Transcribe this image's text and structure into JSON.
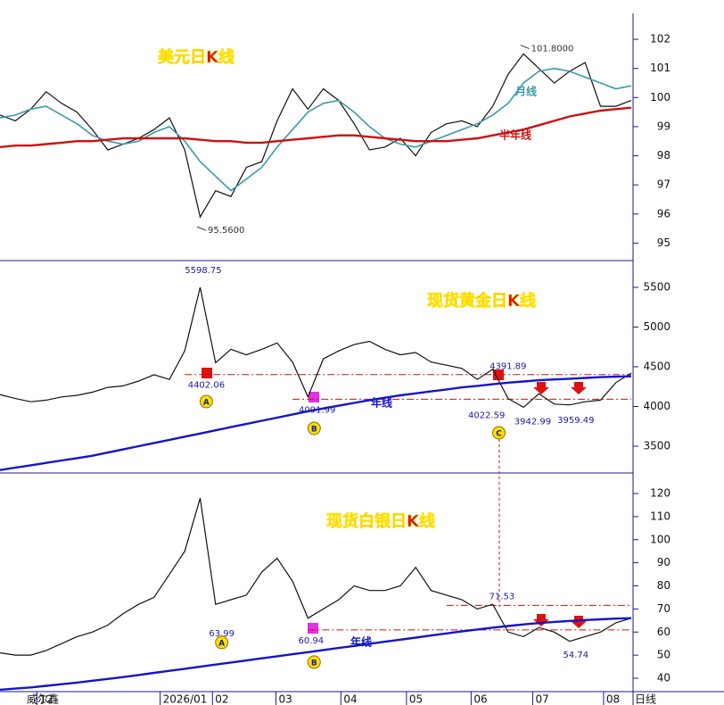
{
  "chart_data": [
    {
      "type": "line",
      "title": "美元日K线",
      "xlim": [
        0,
        205
      ],
      "ylim": [
        94.4,
        103.35
      ],
      "yticks": [
        95,
        96,
        97,
        98,
        99,
        100,
        101,
        102
      ],
      "x": [
        0,
        5,
        10,
        15,
        20,
        25,
        30,
        35,
        40,
        45,
        50,
        55,
        60,
        65,
        70,
        75,
        80,
        85,
        90,
        95,
        100,
        105,
        110,
        115,
        120,
        125,
        130,
        135,
        140,
        145,
        150,
        155,
        160,
        165,
        170,
        175,
        180,
        185,
        190,
        195,
        200,
        205
      ],
      "series": [
        {
          "color": "#111111",
          "values": [
            99.4,
            99.2,
            99.6,
            100.2,
            99.8,
            99.5,
            98.9,
            98.2,
            98.4,
            98.6,
            98.9,
            99.3,
            98.2,
            95.9,
            96.8,
            96.6,
            97.6,
            97.8,
            99.2,
            100.3,
            99.6,
            100.3,
            99.9,
            99.1,
            98.2,
            98.3,
            98.6,
            98.0,
            98.8,
            99.1,
            99.2,
            99.0,
            99.7,
            100.8,
            101.5,
            101.0,
            100.5,
            100.9,
            101.2,
            99.7,
            99.7,
            99.9
          ]
        },
        {
          "name": "月线",
          "color": "#3a9aaa",
          "values": [
            99.3,
            99.4,
            99.6,
            99.7,
            99.4,
            99.1,
            98.7,
            98.5,
            98.4,
            98.5,
            98.8,
            99.0,
            98.5,
            97.8,
            97.3,
            96.8,
            97.2,
            97.6,
            98.3,
            98.9,
            99.5,
            99.8,
            99.9,
            99.5,
            99.0,
            98.6,
            98.4,
            98.3,
            98.5,
            98.7,
            98.9,
            99.1,
            99.4,
            99.8,
            100.5,
            100.9,
            101.0,
            100.9,
            100.7,
            100.5,
            100.3,
            100.4
          ]
        },
        {
          "name": "半年线",
          "color": "#cc1111",
          "values": [
            98.3,
            98.35,
            98.35,
            98.4,
            98.45,
            98.5,
            98.5,
            98.55,
            98.6,
            98.6,
            98.6,
            98.6,
            98.6,
            98.55,
            98.5,
            98.5,
            98.45,
            98.45,
            98.5,
            98.55,
            98.6,
            98.65,
            98.7,
            98.7,
            98.65,
            98.6,
            98.55,
            98.5,
            98.5,
            98.5,
            98.55,
            98.6,
            98.7,
            98.8,
            98.9,
            99.05,
            99.2,
            99.35,
            99.45,
            99.55,
            99.6,
            99.65
          ]
        }
      ],
      "annotations": [
        {
          "text": "101.8000",
          "x": 169,
          "y": 101.8,
          "pos": "right"
        },
        {
          "text": "95.5600",
          "x": 64,
          "y": 95.56,
          "pos": "right"
        }
      ]
    },
    {
      "type": "line",
      "title": "现货黄金日K线",
      "xlim": [
        0,
        205
      ],
      "ylim": [
        3163,
        5837
      ],
      "yticks": [
        3500,
        4000,
        4500,
        5000,
        5500
      ],
      "x": [
        0,
        5,
        10,
        15,
        20,
        25,
        30,
        35,
        40,
        45,
        50,
        55,
        60,
        65,
        70,
        75,
        80,
        85,
        90,
        95,
        100,
        105,
        110,
        115,
        120,
        125,
        130,
        135,
        140,
        145,
        150,
        155,
        160,
        165,
        170,
        175,
        180,
        185,
        190,
        195,
        200,
        205
      ],
      "series": [
        {
          "color": "#111111",
          "values": [
            4150,
            4100,
            4060,
            4080,
            4120,
            4140,
            4180,
            4240,
            4260,
            4320,
            4400,
            4340,
            4700,
            5500,
            4550,
            4720,
            4650,
            4720,
            4800,
            4560,
            4120,
            4600,
            4700,
            4780,
            4820,
            4720,
            4650,
            4680,
            4560,
            4520,
            4480,
            4340,
            4470,
            4100,
            3990,
            4160,
            4030,
            4020,
            4060,
            4080,
            4300,
            4420
          ]
        },
        {
          "name": "年线",
          "color": "#1515c8",
          "values": [
            3200,
            3230,
            3260,
            3290,
            3320,
            3350,
            3380,
            3420,
            3460,
            3500,
            3540,
            3580,
            3620,
            3660,
            3700,
            3740,
            3780,
            3820,
            3860,
            3900,
            3940,
            3975,
            4010,
            4045,
            4080,
            4110,
            4140,
            4165,
            4190,
            4215,
            4240,
            4260,
            4280,
            4300,
            4315,
            4330,
            4340,
            4350,
            4360,
            4370,
            4375,
            4380
          ]
        }
      ],
      "reference_lines": [
        {
          "y": 4402.06,
          "x0": 60,
          "x1": 205
        },
        {
          "y": 4091.99,
          "x0": 95,
          "x1": 205
        }
      ],
      "annotations": [
        {
          "text": "5598.75",
          "x": 66,
          "y": 5598.75,
          "pos": "above"
        },
        {
          "text": "4402.06",
          "x": 67,
          "y": 4402.06,
          "pos": "below"
        },
        {
          "text": "4091.99",
          "x": 103,
          "y": 4091.99,
          "pos": "below"
        },
        {
          "text": "4391.89",
          "x": 165,
          "y": 4391.89,
          "pos": "above"
        },
        {
          "text": "4022.59",
          "x": 158,
          "y": 4022.59,
          "pos": "below"
        },
        {
          "text": "3942.99",
          "x": 173,
          "y": 3942.99,
          "pos": "below"
        },
        {
          "text": "3959.49",
          "x": 187,
          "y": 3959.49,
          "pos": "below"
        }
      ],
      "markers": [
        {
          "text": "A",
          "x": 67,
          "y": 4062
        },
        {
          "text": "B",
          "x": 102,
          "y": 3725
        },
        {
          "text": "C",
          "x": 162,
          "y": 3669
        }
      ]
    },
    {
      "type": "line",
      "title": "现货白银日K线",
      "xlim": [
        0,
        205
      ],
      "ylim": [
        34.2,
        128.9
      ],
      "yticks": [
        40,
        50,
        60,
        70,
        80,
        90,
        100,
        110,
        120
      ],
      "x": [
        0,
        5,
        10,
        15,
        20,
        25,
        30,
        35,
        40,
        45,
        50,
        55,
        60,
        65,
        70,
        75,
        80,
        85,
        90,
        95,
        100,
        105,
        110,
        115,
        120,
        125,
        130,
        135,
        140,
        145,
        150,
        155,
        160,
        165,
        170,
        175,
        180,
        185,
        190,
        195,
        200,
        205
      ],
      "series": [
        {
          "color": "#111111",
          "values": [
            51,
            50,
            50,
            52,
            55,
            58,
            60,
            63,
            68,
            72,
            75,
            85,
            95,
            118,
            72,
            74,
            76,
            86,
            92,
            82,
            66,
            70,
            74,
            80,
            78,
            78,
            80,
            88,
            78,
            76,
            74,
            70,
            72,
            60,
            58,
            62,
            60,
            56,
            58,
            60,
            64,
            66
          ]
        },
        {
          "name": "年线",
          "color": "#1515c8",
          "values": [
            35,
            35.5,
            36,
            36.7,
            37.4,
            38.1,
            38.9,
            39.7,
            40.5,
            41.4,
            42.3,
            43.2,
            44.1,
            45,
            45.9,
            46.8,
            47.7,
            48.6,
            49.5,
            50.4,
            51.3,
            52.2,
            53.1,
            54,
            54.9,
            55.8,
            56.7,
            57.6,
            58.5,
            59.4,
            60.3,
            61.1,
            61.9,
            62.6,
            63.3,
            63.9,
            64.4,
            64.8,
            65.2,
            65.5,
            65.8,
            66
          ]
        }
      ],
      "reference_lines": [
        {
          "y": 71.53,
          "x0": 145,
          "x1": 205
        },
        {
          "y": 60.94,
          "x0": 100,
          "x1": 205
        }
      ],
      "annotations": [
        {
          "text": "63.99",
          "x": 72,
          "y": 63.99,
          "pos": "below"
        },
        {
          "text": "60.94",
          "x": 101,
          "y": 60.94,
          "pos": "below"
        },
        {
          "text": "71.53",
          "x": 163,
          "y": 71.53,
          "pos": "above"
        },
        {
          "text": "54.74",
          "x": 187,
          "y": 54.74,
          "pos": "below"
        }
      ],
      "markers": [
        {
          "text": "A",
          "x": 72,
          "y": 55.5
        },
        {
          "text": "B",
          "x": 102,
          "y": 47
        }
      ],
      "xticks": [
        {
          "value": 12,
          "label": "12"
        },
        {
          "value": 52,
          "label": "2026/01"
        },
        {
          "value": 69,
          "label": "02"
        },
        {
          "value": 89.6,
          "label": "03"
        },
        {
          "value": 110.7,
          "label": "04"
        },
        {
          "value": 132,
          "label": "05"
        },
        {
          "value": 153,
          "label": "06"
        },
        {
          "value": 173,
          "label": "07"
        },
        {
          "value": 196,
          "label": "08"
        }
      ],
      "source": "威尔鑫",
      "period_label": "日线"
    }
  ]
}
